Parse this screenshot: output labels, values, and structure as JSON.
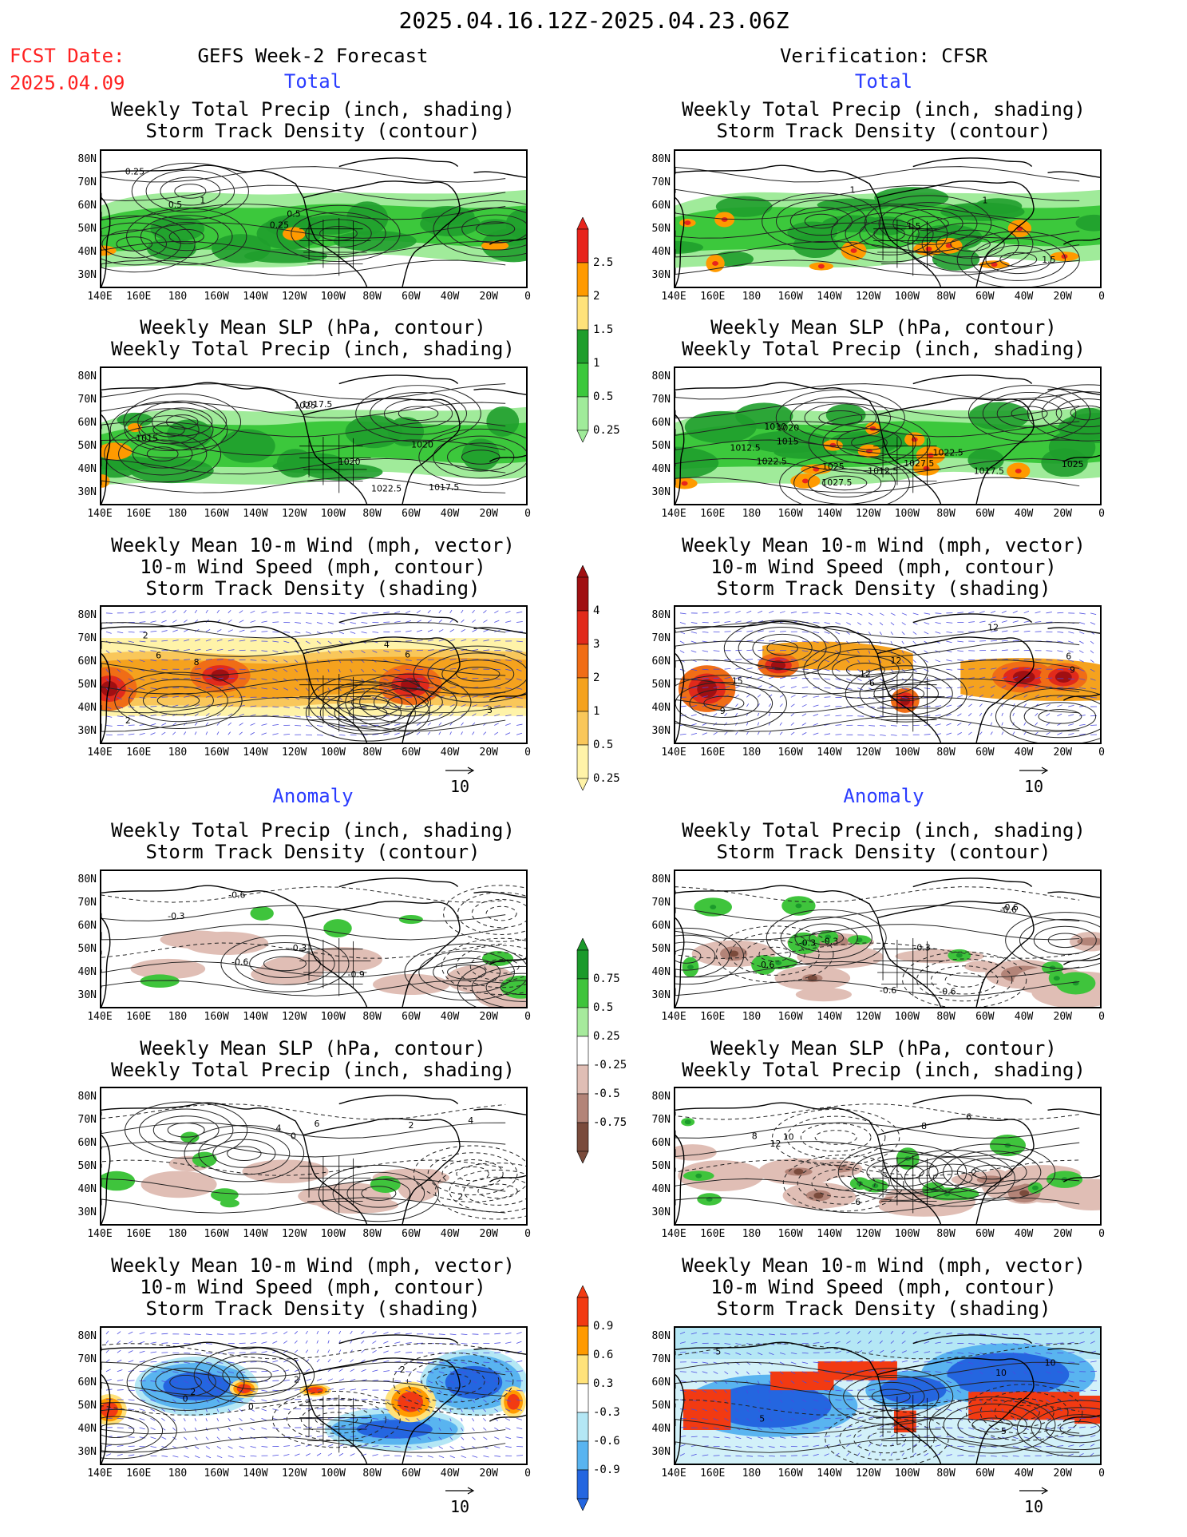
{
  "header": {
    "date_range": "2025.04.16.12Z-2025.04.23.06Z",
    "fcst_label": "FCST Date:",
    "fcst_date": "2025.04.09",
    "left_title": "GEFS Week-2 Forecast",
    "right_title": "Verification: CFSR"
  },
  "sections": {
    "total": "Total",
    "anomaly": "Anomaly"
  },
  "panel_titles": {
    "precip_track": [
      "Weekly Total Precip (inch, shading)",
      "Storm Track Density (contour)"
    ],
    "slp_precip": [
      "Weekly Mean SLP (hPa, contour)",
      "Weekly Total Precip (inch, shading)"
    ],
    "wind_track": [
      "Weekly Mean 10-m Wind (mph, vector)",
      "10-m Wind Speed (mph, contour)",
      "Storm Track Density (shading)"
    ]
  },
  "axes": {
    "lat_labels": [
      "80N",
      "70N",
      "60N",
      "50N",
      "40N",
      "30N"
    ],
    "lon_labels": [
      "140E",
      "160E",
      "180",
      "160W",
      "140W",
      "120W",
      "100W",
      "80W",
      "60W",
      "40W",
      "20W",
      "0"
    ]
  },
  "vector_reference": "10",
  "colorbars": {
    "precip_total": {
      "labels": [
        "2.5",
        "2",
        "1.5",
        "1",
        "0.5",
        "0.25"
      ],
      "colors": [
        "#e8241c",
        "#ff9a00",
        "#ffe27a",
        "#1f9e2c",
        "#3cc83c",
        "#a0eb9a"
      ]
    },
    "track_total": {
      "labels": [
        "4",
        "3",
        "2",
        "1",
        "0.5",
        "0.25"
      ],
      "colors": [
        "#a00f12",
        "#e12a1b",
        "#f06d16",
        "#f5a21e",
        "#f9c75a",
        "#fff3a8"
      ]
    },
    "precip_anom": {
      "labels": [
        "0.75",
        "0.5",
        "0.25",
        "-0.25",
        "-0.5",
        "-0.75"
      ],
      "colors": [
        "#1b9a2b",
        "#3fc43c",
        "#a6ea9c",
        "#ffffff",
        "#e0beb5",
        "#b38478",
        "#7a4b3c"
      ]
    },
    "track_anom": {
      "labels": [
        "0.9",
        "0.6",
        "0.3",
        "-0.3",
        "-0.6",
        "-0.9"
      ],
      "colors": [
        "#f23a12",
        "#ff9a00",
        "#ffe27a",
        "#ffffff",
        "#b4e7f5",
        "#59b4f0",
        "#2466e0"
      ]
    }
  },
  "contour_labels": {
    "p1": [
      "0.25",
      "0.5",
      "1",
      "0.5",
      "0.25"
    ],
    "p2": [
      "1.5",
      "1",
      "1.5",
      "1"
    ],
    "p3": [
      "1025",
      "1022.5",
      "1020",
      "1017.5",
      "1015",
      "1017.5",
      "1020"
    ],
    "p4": [
      "1027.5",
      "1025",
      "1012.5",
      "1010",
      "1022.5",
      "1017.5",
      "1015",
      "1020",
      "1012.5",
      "1027.5",
      "1025",
      "1022.5"
    ],
    "p5": [
      "3",
      "2",
      "4",
      "6",
      "8",
      "6",
      "2"
    ],
    "p6": [
      "9",
      "6",
      "12",
      "15",
      "12",
      "9",
      "6",
      "12"
    ],
    "p7": [
      "-0.3",
      "-0.6",
      "-0.3",
      "-0.9",
      "-0.6"
    ],
    "p8": [
      "-0.6",
      "-0.3",
      "-0.6",
      "-0.3",
      "-0.6",
      "0.6",
      "-0.3",
      "-0.6"
    ],
    "p9": [
      "2",
      "4",
      "4",
      "6",
      "0",
      "2"
    ],
    "p10": [
      "6",
      "8",
      "10",
      "12",
      "8",
      "6",
      "2"
    ],
    "p11": [
      "0",
      "2",
      "2",
      "0",
      "2"
    ],
    "p12": [
      "5",
      "10",
      "5",
      "5",
      "10"
    ]
  }
}
